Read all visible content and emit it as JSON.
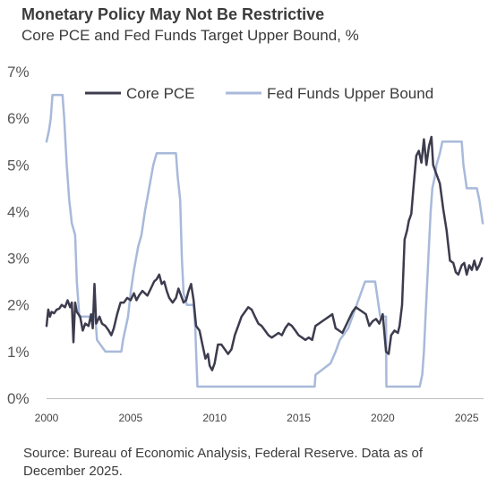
{
  "chart_data": {
    "type": "line",
    "title": "Monetary Policy May Not Be Restrictive",
    "subtitle": "Core PCE and Fed Funds Target Upper Bound, %",
    "xlim": [
      2000,
      2026
    ],
    "ylim": [
      0,
      7
    ],
    "y_ticks": [
      "0%",
      "1%",
      "2%",
      "3%",
      "4%",
      "5%",
      "6%",
      "7%"
    ],
    "x_ticks": [
      "2000",
      "2005",
      "2010",
      "2015",
      "2020",
      "2025"
    ],
    "grid": false,
    "legend_position": "top",
    "series": [
      {
        "name": "Core PCE",
        "color": "#3d3c4e",
        "points": [
          [
            2000.0,
            1.55
          ],
          [
            2000.1,
            1.9
          ],
          [
            2000.2,
            1.75
          ],
          [
            2000.3,
            1.85
          ],
          [
            2000.45,
            1.82
          ],
          [
            2000.6,
            1.9
          ],
          [
            2000.75,
            1.92
          ],
          [
            2000.9,
            2.0
          ],
          [
            2001.1,
            1.95
          ],
          [
            2001.25,
            2.1
          ],
          [
            2001.4,
            1.95
          ],
          [
            2001.5,
            2.05
          ],
          [
            2001.6,
            1.2
          ],
          [
            2001.7,
            2.05
          ],
          [
            2001.8,
            1.85
          ],
          [
            2002.0,
            1.75
          ],
          [
            2002.15,
            1.45
          ],
          [
            2002.3,
            1.6
          ],
          [
            2002.5,
            1.55
          ],
          [
            2002.65,
            1.8
          ],
          [
            2002.75,
            1.5
          ],
          [
            2002.85,
            2.45
          ],
          [
            2002.95,
            1.6
          ],
          [
            2003.15,
            1.75
          ],
          [
            2003.3,
            1.6
          ],
          [
            2003.5,
            1.55
          ],
          [
            2003.7,
            1.45
          ],
          [
            2003.85,
            1.35
          ],
          [
            2004.0,
            1.5
          ],
          [
            2004.2,
            1.8
          ],
          [
            2004.4,
            2.05
          ],
          [
            2004.6,
            2.05
          ],
          [
            2004.8,
            2.15
          ],
          [
            2005.0,
            2.1
          ],
          [
            2005.2,
            2.25
          ],
          [
            2005.35,
            2.1
          ],
          [
            2005.5,
            2.2
          ],
          [
            2005.7,
            2.3
          ],
          [
            2005.85,
            2.25
          ],
          [
            2006.0,
            2.2
          ],
          [
            2006.2,
            2.35
          ],
          [
            2006.4,
            2.5
          ],
          [
            2006.55,
            2.55
          ],
          [
            2006.7,
            2.65
          ],
          [
            2006.85,
            2.45
          ],
          [
            2007.0,
            2.5
          ],
          [
            2007.15,
            2.3
          ],
          [
            2007.3,
            2.15
          ],
          [
            2007.5,
            2.05
          ],
          [
            2007.7,
            2.15
          ],
          [
            2007.85,
            2.35
          ],
          [
            2008.0,
            2.2
          ],
          [
            2008.15,
            2.05
          ],
          [
            2008.3,
            2.1
          ],
          [
            2008.45,
            2.3
          ],
          [
            2008.6,
            2.45
          ],
          [
            2008.75,
            2.1
          ],
          [
            2008.9,
            1.55
          ],
          [
            2009.1,
            1.45
          ],
          [
            2009.3,
            1.1
          ],
          [
            2009.45,
            0.85
          ],
          [
            2009.6,
            0.95
          ],
          [
            2009.7,
            0.7
          ],
          [
            2009.85,
            0.6
          ],
          [
            2010.0,
            0.75
          ],
          [
            2010.2,
            1.15
          ],
          [
            2010.4,
            1.15
          ],
          [
            2010.6,
            1.05
          ],
          [
            2010.8,
            0.95
          ],
          [
            2011.0,
            1.05
          ],
          [
            2011.2,
            1.35
          ],
          [
            2011.4,
            1.55
          ],
          [
            2011.6,
            1.75
          ],
          [
            2011.8,
            1.85
          ],
          [
            2012.0,
            1.95
          ],
          [
            2012.2,
            1.9
          ],
          [
            2012.4,
            1.75
          ],
          [
            2012.6,
            1.6
          ],
          [
            2012.8,
            1.55
          ],
          [
            2013.0,
            1.45
          ],
          [
            2013.2,
            1.35
          ],
          [
            2013.4,
            1.3
          ],
          [
            2013.6,
            1.35
          ],
          [
            2013.8,
            1.4
          ],
          [
            2014.0,
            1.35
          ],
          [
            2014.2,
            1.5
          ],
          [
            2014.4,
            1.6
          ],
          [
            2014.6,
            1.55
          ],
          [
            2014.8,
            1.45
          ],
          [
            2015.0,
            1.35
          ],
          [
            2015.2,
            1.3
          ],
          [
            2015.4,
            1.25
          ],
          [
            2015.6,
            1.3
          ],
          [
            2015.8,
            1.25
          ],
          [
            2016.0,
            1.55
          ],
          [
            2016.2,
            1.6
          ],
          [
            2016.4,
            1.65
          ],
          [
            2016.6,
            1.7
          ],
          [
            2016.8,
            1.75
          ],
          [
            2017.0,
            1.8
          ],
          [
            2017.2,
            1.5
          ],
          [
            2017.4,
            1.45
          ],
          [
            2017.6,
            1.4
          ],
          [
            2017.8,
            1.55
          ],
          [
            2018.0,
            1.7
          ],
          [
            2018.2,
            1.85
          ],
          [
            2018.4,
            1.95
          ],
          [
            2018.6,
            1.9
          ],
          [
            2018.8,
            1.85
          ],
          [
            2019.0,
            1.8
          ],
          [
            2019.2,
            1.55
          ],
          [
            2019.4,
            1.65
          ],
          [
            2019.6,
            1.7
          ],
          [
            2019.8,
            1.6
          ],
          [
            2020.0,
            1.8
          ],
          [
            2020.2,
            1.0
          ],
          [
            2020.35,
            0.95
          ],
          [
            2020.5,
            1.35
          ],
          [
            2020.7,
            1.45
          ],
          [
            2020.9,
            1.4
          ],
          [
            2021.0,
            1.55
          ],
          [
            2021.15,
            2.0
          ],
          [
            2021.3,
            3.4
          ],
          [
            2021.45,
            3.6
          ],
          [
            2021.55,
            3.8
          ],
          [
            2021.7,
            3.95
          ],
          [
            2021.85,
            4.6
          ],
          [
            2022.0,
            5.2
          ],
          [
            2022.15,
            5.3
          ],
          [
            2022.3,
            5.05
          ],
          [
            2022.45,
            5.55
          ],
          [
            2022.6,
            5.0
          ],
          [
            2022.75,
            5.4
          ],
          [
            2022.9,
            5.6
          ],
          [
            2023.0,
            5.0
          ],
          [
            2023.2,
            4.8
          ],
          [
            2023.4,
            4.6
          ],
          [
            2023.6,
            4.05
          ],
          [
            2023.8,
            3.6
          ],
          [
            2024.0,
            2.95
          ],
          [
            2024.2,
            2.9
          ],
          [
            2024.35,
            2.7
          ],
          [
            2024.5,
            2.65
          ],
          [
            2024.7,
            2.85
          ],
          [
            2024.85,
            2.9
          ],
          [
            2025.0,
            2.65
          ],
          [
            2025.15,
            2.85
          ],
          [
            2025.3,
            2.75
          ],
          [
            2025.45,
            2.95
          ],
          [
            2025.6,
            2.75
          ],
          [
            2025.75,
            2.85
          ],
          [
            2025.9,
            3.0
          ]
        ]
      },
      {
        "name": "Fed Funds Upper Bound",
        "color": "#a8b9da",
        "points": [
          [
            2000.0,
            5.5
          ],
          [
            2000.15,
            5.75
          ],
          [
            2000.25,
            6.0
          ],
          [
            2000.35,
            6.5
          ],
          [
            2000.95,
            6.5
          ],
          [
            2001.05,
            6.0
          ],
          [
            2001.2,
            5.0
          ],
          [
            2001.35,
            4.25
          ],
          [
            2001.5,
            3.75
          ],
          [
            2001.7,
            3.5
          ],
          [
            2001.8,
            2.5
          ],
          [
            2001.95,
            1.75
          ],
          [
            2002.9,
            1.75
          ],
          [
            2003.0,
            1.25
          ],
          [
            2003.5,
            1.0
          ],
          [
            2004.45,
            1.0
          ],
          [
            2004.55,
            1.25
          ],
          [
            2004.7,
            1.5
          ],
          [
            2004.85,
            1.75
          ],
          [
            2005.0,
            2.25
          ],
          [
            2005.2,
            2.75
          ],
          [
            2005.45,
            3.25
          ],
          [
            2005.65,
            3.5
          ],
          [
            2005.85,
            4.0
          ],
          [
            2006.1,
            4.5
          ],
          [
            2006.35,
            5.0
          ],
          [
            2006.55,
            5.25
          ],
          [
            2007.7,
            5.25
          ],
          [
            2007.8,
            4.75
          ],
          [
            2007.95,
            4.25
          ],
          [
            2008.05,
            3.0
          ],
          [
            2008.15,
            2.25
          ],
          [
            2008.35,
            2.0
          ],
          [
            2008.75,
            2.0
          ],
          [
            2008.85,
            1.5
          ],
          [
            2008.9,
            1.0
          ],
          [
            2008.98,
            0.25
          ],
          [
            2015.95,
            0.25
          ],
          [
            2016.0,
            0.5
          ],
          [
            2016.9,
            0.75
          ],
          [
            2017.2,
            1.0
          ],
          [
            2017.45,
            1.25
          ],
          [
            2017.95,
            1.5
          ],
          [
            2018.2,
            1.75
          ],
          [
            2018.45,
            2.0
          ],
          [
            2018.7,
            2.25
          ],
          [
            2018.95,
            2.5
          ],
          [
            2019.55,
            2.5
          ],
          [
            2019.65,
            2.25
          ],
          [
            2019.75,
            2.0
          ],
          [
            2019.85,
            1.75
          ],
          [
            2020.2,
            1.75
          ],
          [
            2020.22,
            0.25
          ],
          [
            2022.2,
            0.25
          ],
          [
            2022.35,
            0.5
          ],
          [
            2022.45,
            1.0
          ],
          [
            2022.55,
            1.75
          ],
          [
            2022.65,
            2.5
          ],
          [
            2022.75,
            3.25
          ],
          [
            2022.85,
            4.0
          ],
          [
            2022.95,
            4.5
          ],
          [
            2023.1,
            4.75
          ],
          [
            2023.2,
            5.0
          ],
          [
            2023.4,
            5.25
          ],
          [
            2023.55,
            5.5
          ],
          [
            2024.7,
            5.5
          ],
          [
            2024.8,
            5.0
          ],
          [
            2024.9,
            4.75
          ],
          [
            2025.0,
            4.5
          ],
          [
            2025.6,
            4.5
          ],
          [
            2025.75,
            4.25
          ],
          [
            2025.85,
            4.0
          ],
          [
            2025.95,
            3.75
          ]
        ]
      }
    ]
  },
  "footer": {
    "source": "Source: Bureau of Economic Analysis, Federal Reserve. Data as of December 2025."
  }
}
